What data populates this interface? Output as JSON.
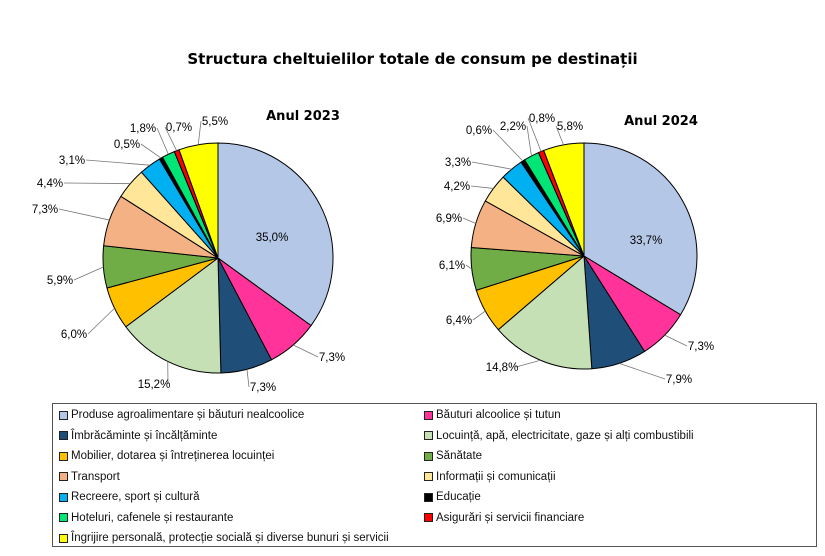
{
  "chart_data": [
    {
      "type": "pie",
      "title": "Anul 2023",
      "categories": [
        "Produse agroalimentare și băuturi nealcoolice",
        "Băuturi alcoolice și tutun",
        "Îmbrăcăminte și încălțăminte",
        "Locuință, apă, electricitate, gaze și alți combustibili",
        "Mobilier, dotarea și întreținerea locuinței",
        "Sănătate",
        "Transport",
        "Informații și comunicații",
        "Recreere, sport și cultură",
        "Educație",
        "Hoteluri, cafenele și restaurante",
        "Asigurări și servicii financiare",
        "Îngrijire personală, protecție socială și diverse bunuri și servicii"
      ],
      "values": [
        35.0,
        7.3,
        7.3,
        15.2,
        6.0,
        5.9,
        7.3,
        4.4,
        3.1,
        0.5,
        1.8,
        0.7,
        5.5
      ],
      "labels": [
        "35,0%",
        "7,3%",
        "7,3%",
        "15,2%",
        "6,0%",
        "5,9%",
        "7,3%",
        "4,4%",
        "3,1%",
        "0,5%",
        "1,8%",
        "0,7%",
        "5,5%"
      ]
    },
    {
      "type": "pie",
      "title": "Anul 2024",
      "categories": [
        "Produse agroalimentare și băuturi nealcoolice",
        "Băuturi alcoolice și tutun",
        "Îmbrăcăminte și încălțăminte",
        "Locuință, apă, electricitate, gaze și alți combustibili",
        "Mobilier, dotarea și întreținerea locuinței",
        "Sănătate",
        "Transport",
        "Informații și comunicații",
        "Recreere, sport și cultură",
        "Educație",
        "Hoteluri, cafenele și restaurante",
        "Asigurări și servicii financiare",
        "Îngrijire personală, protecție socială și diverse bunuri și servicii"
      ],
      "values": [
        33.7,
        7.3,
        7.9,
        14.8,
        6.4,
        6.1,
        6.9,
        4.2,
        3.3,
        0.6,
        2.2,
        0.8,
        5.8
      ],
      "labels": [
        "33,7%",
        "7,3%",
        "7,9%",
        "14,8%",
        "6,4%",
        "6,1%",
        "6,9%",
        "4,2%",
        "3,3%",
        "0,6%",
        "2,2%",
        "0,8%",
        "5,8%"
      ]
    }
  ],
  "title": "Structura cheltuielilor totale de consum pe destinații",
  "colors": [
    "#B4C7E7",
    "#FF3399",
    "#1F4E79",
    "#C5E0B4",
    "#FFC000",
    "#70AD47",
    "#F4B183",
    "#FFE699",
    "#00B0F0",
    "#000000",
    "#00E676",
    "#FF0000",
    "#FFFF00"
  ],
  "legend": {
    "placement": "bottom",
    "items": [
      "Produse agroalimentare și băuturi nealcoolice",
      "Băuturi alcoolice și tutun",
      "Îmbrăcăminte și încălțăminte",
      "Locuință, apă, electricitate, gaze și alți combustibili",
      "Mobilier, dotarea și întreținerea locuinței",
      "Sănătate",
      "Transport",
      "Informații și comunicații",
      "Recreere, sport și cultură",
      "Educație",
      "Hoteluri, cafenele și restaurante",
      "Asigurări și servicii financiare",
      "Îngrijire personală, protecție socială și diverse bunuri și servicii"
    ]
  }
}
